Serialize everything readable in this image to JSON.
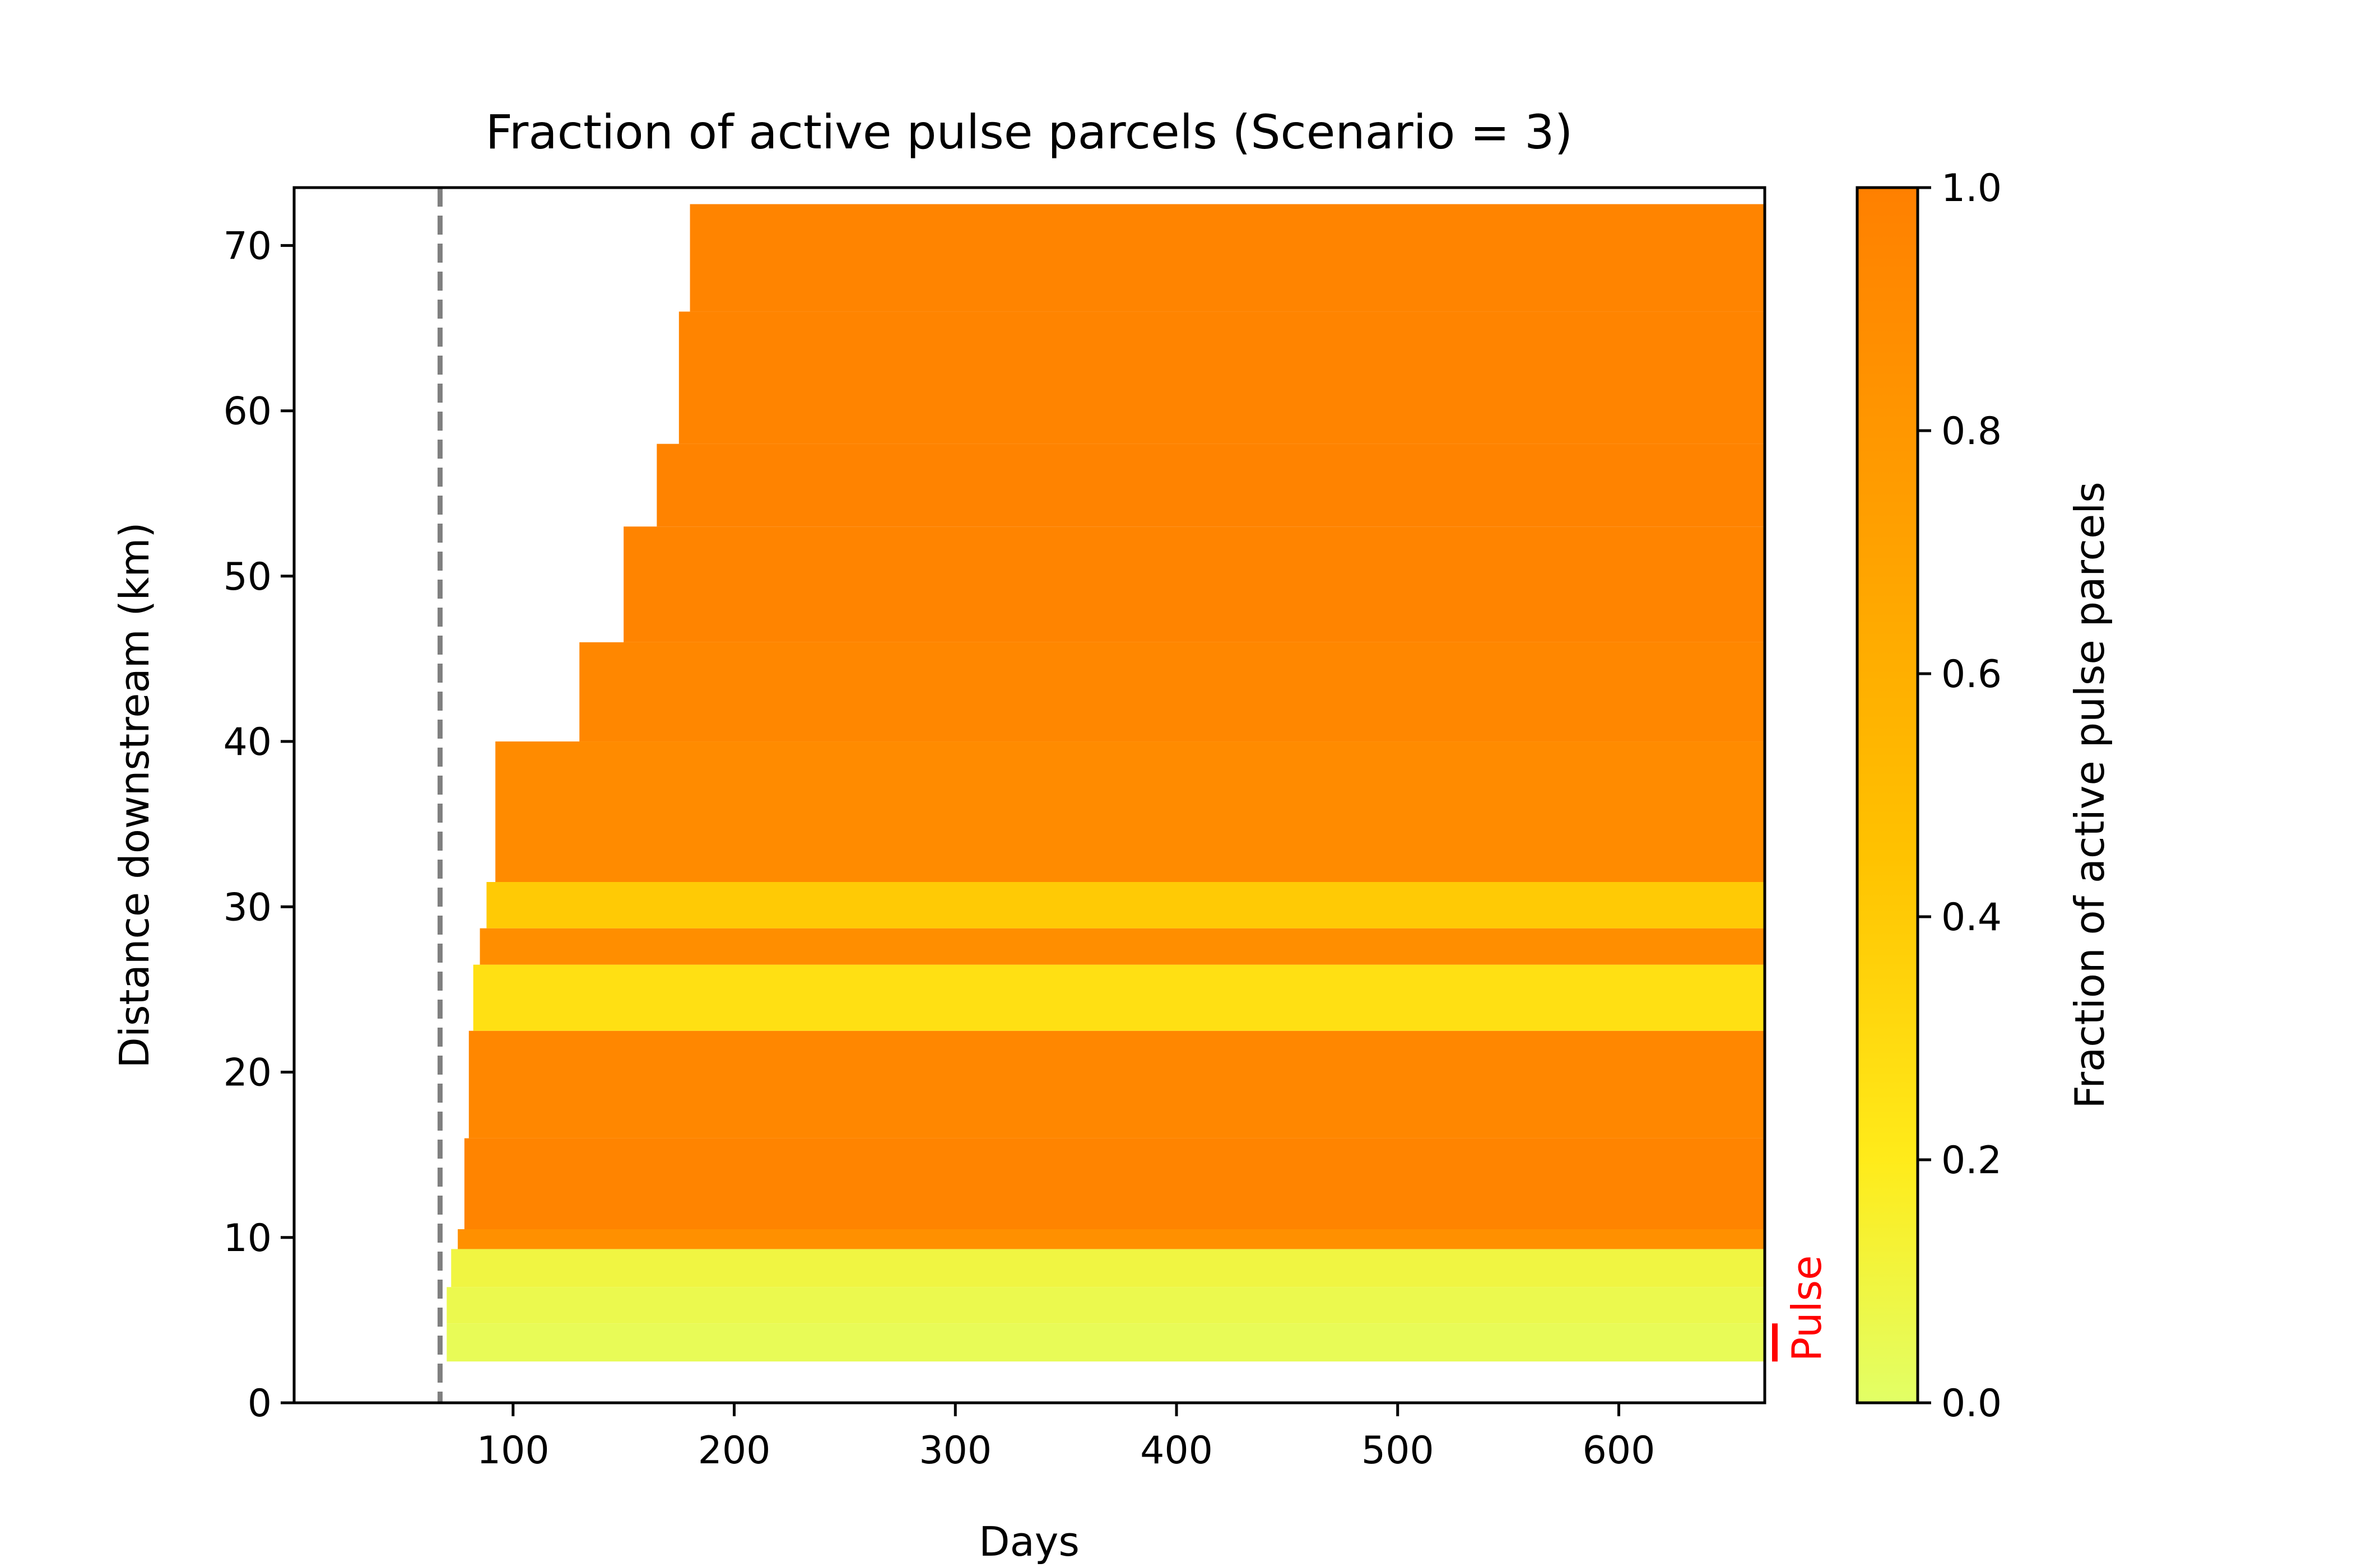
{
  "chart_data": {
    "type": "heatmap",
    "title": "Fraction of active pulse parcels (Scenario = 3)",
    "xlabel": "Days",
    "ylabel": "Distance downstream (km)",
    "xlim": [
      1,
      666
    ],
    "ylim": [
      0,
      73.5
    ],
    "xticks": [
      100,
      200,
      300,
      400,
      500,
      600
    ],
    "yticks": [
      0,
      10,
      20,
      30,
      40,
      50,
      60,
      70
    ],
    "grid": false,
    "colormap": [
      "#e2ff66",
      "#ffeb1a",
      "#ffc200",
      "#ffa200",
      "#ff8000"
    ],
    "colorbar": {
      "label": "Fraction of active pulse parcels",
      "range": [
        0,
        1
      ],
      "ticks": [
        "0.0",
        "0.2",
        "0.4",
        "0.6",
        "0.8",
        "1.0"
      ]
    },
    "pulse_release_day": 67,
    "pulse_marker": {
      "label": "Pulse",
      "y_range_km": [
        2.5,
        4.8
      ],
      "color": "#ff0000"
    },
    "bands": [
      {
        "y0": 2.5,
        "y1": 4.8,
        "value": 0.05,
        "onset_day": 70
      },
      {
        "y0": 4.8,
        "y1": 7.0,
        "value": 0.08,
        "onset_day": 70
      },
      {
        "y0": 7.0,
        "y1": 9.3,
        "value": 0.12,
        "onset_day": 72
      },
      {
        "y0": 9.3,
        "y1": 10.5,
        "value": 0.88,
        "onset_day": 75
      },
      {
        "y0": 10.5,
        "y1": 16.0,
        "value": 0.97,
        "onset_day": 78
      },
      {
        "y0": 16.0,
        "y1": 22.5,
        "value": 0.95,
        "onset_day": 80
      },
      {
        "y0": 22.5,
        "y1": 26.5,
        "value": 0.32,
        "onset_day": 82
      },
      {
        "y0": 26.5,
        "y1": 28.7,
        "value": 0.9,
        "onset_day": 85
      },
      {
        "y0": 28.7,
        "y1": 31.5,
        "value": 0.45,
        "onset_day": 88
      },
      {
        "y0": 31.5,
        "y1": 40.0,
        "value": 0.92,
        "onset_day": 92
      },
      {
        "y0": 40.0,
        "y1": 46.0,
        "value": 0.95,
        "onset_day": 130
      },
      {
        "y0": 46.0,
        "y1": 53.0,
        "value": 0.97,
        "onset_day": 150
      },
      {
        "y0": 53.0,
        "y1": 58.0,
        "value": 0.98,
        "onset_day": 165
      },
      {
        "y0": 58.0,
        "y1": 66.0,
        "value": 0.97,
        "onset_day": 175
      },
      {
        "y0": 66.0,
        "y1": 72.5,
        "value": 0.97,
        "onset_day": 180
      }
    ]
  }
}
